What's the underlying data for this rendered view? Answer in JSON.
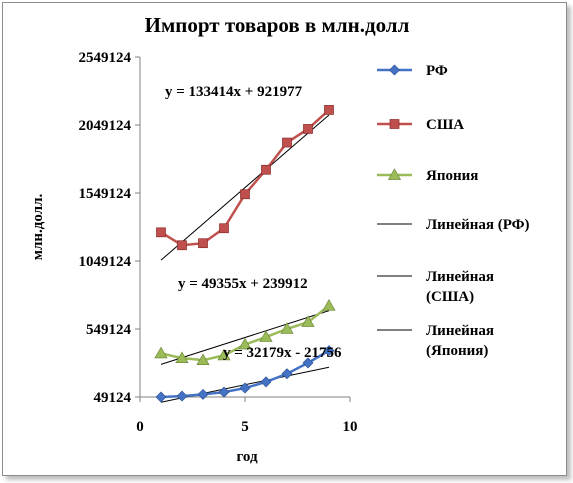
{
  "chart_data": {
    "type": "line",
    "title": "Импорт товаров в млн.долл",
    "xlabel": "год",
    "ylabel": "млн.долл.",
    "xlim": [
      0,
      10
    ],
    "ylim": [
      49124,
      2549124
    ],
    "xticks": [
      "0",
      "5",
      "10"
    ],
    "yticks": [
      "49124",
      "549124",
      "1049124",
      "1549124",
      "2049124",
      "2549124"
    ],
    "x": [
      1,
      2,
      3,
      4,
      5,
      6,
      7,
      8,
      9
    ],
    "series": [
      {
        "name": "РФ",
        "color": "#4472c4",
        "marker": "diamond",
        "values": [
          49124,
          56000,
          68000,
          85000,
          115000,
          160000,
          220000,
          300000,
          390000
        ]
      },
      {
        "name": "США",
        "color": "#c0504d",
        "marker": "square",
        "values": [
          1260000,
          1165000,
          1180000,
          1290000,
          1540000,
          1720000,
          1920000,
          2020000,
          2160000
        ]
      },
      {
        "name": "Япония",
        "color": "#9bbb59",
        "marker": "triangle",
        "values": [
          370000,
          335000,
          320000,
          355000,
          435000,
          490000,
          550000,
          600000,
          720000
        ]
      }
    ],
    "trendlines": [
      {
        "name": "Линейная (РФ)",
        "slope": 32179,
        "intercept": -21756,
        "equation": "y = 32179x - 21756"
      },
      {
        "name": "Линейная (США)",
        "slope": 133414,
        "intercept": 921977,
        "equation": "y = 133414x + 921977"
      },
      {
        "name": "Линейная (Япония)",
        "slope": 49355,
        "intercept": 239912,
        "equation": "y = 49355x + 239912"
      }
    ],
    "legend_position": "right",
    "legend": [
      {
        "label": "РФ",
        "kind": "series",
        "index": 0
      },
      {
        "label": "США",
        "kind": "series",
        "index": 1
      },
      {
        "label": "Япония",
        "kind": "series",
        "index": 2
      },
      {
        "label_lines": [
          "Линейная (РФ)"
        ],
        "kind": "trend",
        "index": 0
      },
      {
        "label_lines": [
          "Линейная",
          "(США)"
        ],
        "kind": "trend",
        "index": 1
      },
      {
        "label_lines": [
          "Линейная",
          "(Япония)"
        ],
        "kind": "trend",
        "index": 2
      }
    ],
    "grid": false
  }
}
